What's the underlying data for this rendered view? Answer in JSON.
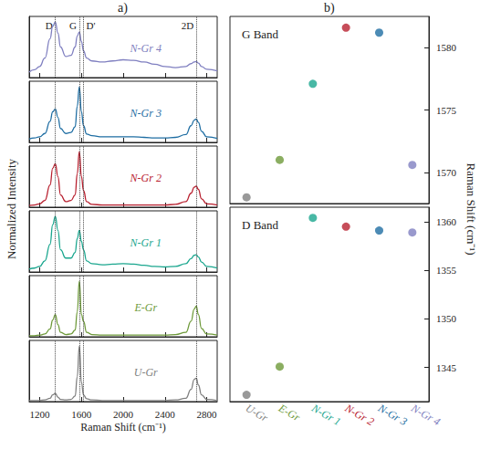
{
  "chart_data": [
    {
      "type": "line",
      "panel_label": "a)",
      "xlabel": "Raman Shift (cm⁻¹)",
      "ylabel": "Normalized Intensity",
      "xlim": [
        1100,
        2900
      ],
      "xticks": [
        1200,
        1600,
        2000,
        2400,
        2800
      ],
      "ylim": [
        0,
        1.1
      ],
      "tick_labels": "x",
      "reference_lines": [
        {
          "label": "D",
          "value": 1350
        },
        {
          "label": "G",
          "value": 1580
        },
        {
          "label": "D'",
          "value": 1620
        },
        {
          "label": "2D",
          "value": 2700
        }
      ],
      "x": [
        1100,
        1150,
        1200,
        1250,
        1300,
        1325,
        1350,
        1375,
        1400,
        1450,
        1500,
        1540,
        1560,
        1580,
        1600,
        1620,
        1650,
        1700,
        1800,
        1900,
        2000,
        2100,
        2200,
        2300,
        2400,
        2500,
        2600,
        2650,
        2680,
        2700,
        2720,
        2750,
        2800,
        2900
      ],
      "series": [
        {
          "name": "N-Gr 4",
          "color": "#7f7fc0",
          "values": [
            0.1,
            0.14,
            0.2,
            0.35,
            0.7,
            0.92,
            1.0,
            0.8,
            0.55,
            0.38,
            0.4,
            0.55,
            0.75,
            0.82,
            0.65,
            0.48,
            0.35,
            0.3,
            0.28,
            0.3,
            0.32,
            0.31,
            0.28,
            0.24,
            0.2,
            0.18,
            0.2,
            0.25,
            0.28,
            0.29,
            0.26,
            0.2,
            0.15,
            0.12
          ]
        },
        {
          "name": "N-Gr 3",
          "color": "#1f6ea3",
          "values": [
            0.06,
            0.08,
            0.1,
            0.16,
            0.38,
            0.55,
            0.6,
            0.45,
            0.25,
            0.16,
            0.18,
            0.28,
            0.65,
            1.0,
            0.55,
            0.3,
            0.15,
            0.12,
            0.1,
            0.1,
            0.1,
            0.1,
            0.09,
            0.08,
            0.08,
            0.09,
            0.14,
            0.3,
            0.4,
            0.42,
            0.36,
            0.2,
            0.1,
            0.07
          ]
        },
        {
          "name": "N-Gr 2",
          "color": "#b8202f",
          "values": [
            0.03,
            0.04,
            0.06,
            0.12,
            0.4,
            0.7,
            0.78,
            0.55,
            0.22,
            0.1,
            0.12,
            0.22,
            0.6,
            1.0,
            0.55,
            0.3,
            0.1,
            0.05,
            0.04,
            0.04,
            0.04,
            0.04,
            0.04,
            0.04,
            0.04,
            0.05,
            0.1,
            0.25,
            0.36,
            0.38,
            0.32,
            0.15,
            0.06,
            0.04
          ]
        },
        {
          "name": "N-Gr 1",
          "color": "#1aa68e",
          "values": [
            0.05,
            0.07,
            0.1,
            0.2,
            0.5,
            0.85,
            1.0,
            0.75,
            0.4,
            0.25,
            0.25,
            0.35,
            0.6,
            0.75,
            0.55,
            0.4,
            0.2,
            0.15,
            0.13,
            0.14,
            0.15,
            0.14,
            0.12,
            0.1,
            0.09,
            0.1,
            0.15,
            0.24,
            0.3,
            0.31,
            0.27,
            0.18,
            0.1,
            0.07
          ]
        },
        {
          "name": "E-Gr",
          "color": "#6e9a3a",
          "values": [
            0.02,
            0.02,
            0.03,
            0.05,
            0.14,
            0.3,
            0.4,
            0.22,
            0.08,
            0.04,
            0.05,
            0.12,
            0.45,
            1.0,
            0.4,
            0.28,
            0.08,
            0.04,
            0.03,
            0.03,
            0.03,
            0.03,
            0.03,
            0.03,
            0.03,
            0.04,
            0.08,
            0.28,
            0.5,
            0.55,
            0.4,
            0.15,
            0.05,
            0.03
          ]
        },
        {
          "name": "U-Gr",
          "color": "#7f7f7f",
          "values": [
            0.02,
            0.02,
            0.02,
            0.03,
            0.06,
            0.12,
            0.15,
            0.08,
            0.04,
            0.03,
            0.04,
            0.1,
            0.45,
            1.0,
            0.35,
            0.12,
            0.05,
            0.03,
            0.02,
            0.02,
            0.02,
            0.02,
            0.02,
            0.02,
            0.02,
            0.03,
            0.06,
            0.22,
            0.4,
            0.42,
            0.3,
            0.12,
            0.04,
            0.02
          ]
        }
      ]
    },
    {
      "type": "scatter",
      "panel_label": "b)",
      "ylabel": "Raman Shift (cm⁻¹)",
      "categories": [
        "U-Gr",
        "E-Gr",
        "N-Gr 1",
        "N-Gr 2",
        "N-Gr 3",
        "N-Gr 4"
      ],
      "colors": [
        "#7f7f7f",
        "#6e9a3a",
        "#1aa68e",
        "#b8202f",
        "#1f6ea3",
        "#7f7fc0"
      ],
      "marker": "circle",
      "panels": [
        {
          "title": "G Band",
          "values": [
            1568.0,
            1571.0,
            1577.1,
            1581.6,
            1581.2,
            1570.6
          ],
          "ylim": [
            1567.5,
            1582.5
          ],
          "yticks": [
            1570,
            1575,
            1580
          ],
          "tick_labels": "y"
        },
        {
          "title": "D Band",
          "values": [
            1342.2,
            1345.1,
            1360.4,
            1359.5,
            1359.1,
            1358.9
          ],
          "ylim": [
            1341.5,
            1361.5
          ],
          "yticks": [
            1345,
            1350,
            1355,
            1360
          ]
        }
      ]
    }
  ]
}
